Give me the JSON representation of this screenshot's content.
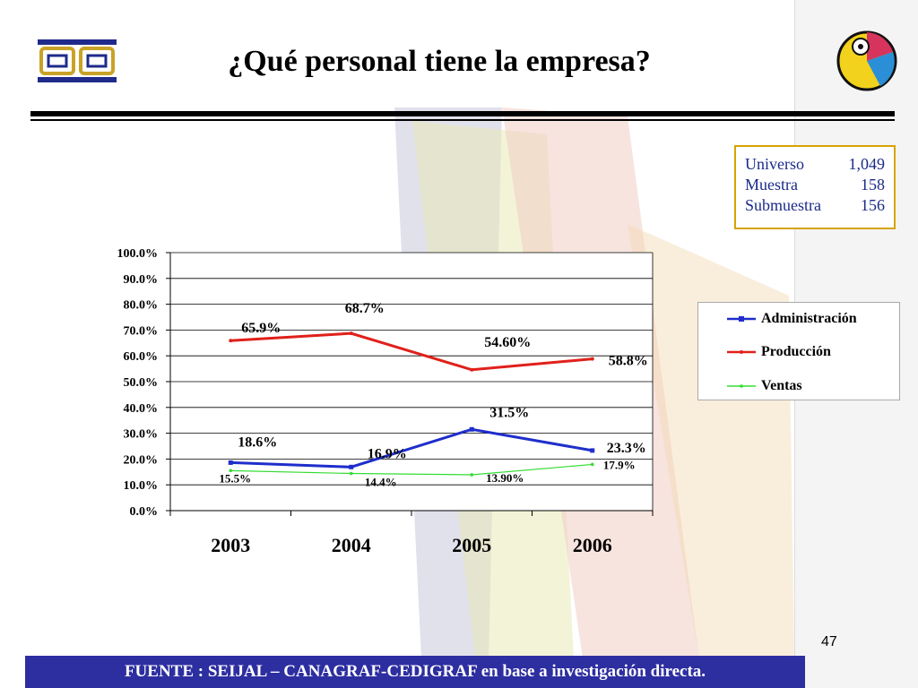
{
  "slide": {
    "title": "¿Qué personal tiene la empresa?",
    "page_number": "47",
    "source_note": "FUENTE :  SEIJAL – CANAGRAF-CEDIGRAF en base a investigación directa."
  },
  "sample_info": [
    {
      "label": "Universo",
      "value": "1,049"
    },
    {
      "label": "Muestra",
      "value": "158"
    },
    {
      "label": "Submuestra",
      "value": "156"
    }
  ],
  "colors": {
    "administracion": "#1f2ecb",
    "produccion": "#e0201a",
    "ventas": "#33dd33",
    "footer": "#2d2ea0",
    "box_border": "#d6a400"
  },
  "chart_data": {
    "type": "line",
    "title": "",
    "xlabel": "",
    "ylabel": "",
    "categories": [
      "2003",
      "2004",
      "2005",
      "2006"
    ],
    "ylim": [
      0,
      100
    ],
    "y_ticks": [
      "0.0%",
      "10.0%",
      "20.0%",
      "30.0%",
      "40.0%",
      "50.0%",
      "60.0%",
      "70.0%",
      "80.0%",
      "90.0%",
      "100.0%"
    ],
    "grid": true,
    "legend_position": "right",
    "series": [
      {
        "name": "Administración",
        "key": "administracion",
        "values": [
          18.6,
          16.9,
          31.5,
          23.3
        ],
        "labels": [
          "18.6%",
          "16.9%",
          "31.5%",
          "23.3%"
        ]
      },
      {
        "name": "Producción",
        "key": "produccion",
        "values": [
          65.9,
          68.7,
          54.6,
          58.8
        ],
        "labels": [
          "65.9%",
          "68.7%",
          "54.60%",
          "58.8%"
        ]
      },
      {
        "name": "Ventas",
        "key": "ventas",
        "values": [
          15.5,
          14.4,
          13.9,
          17.9
        ],
        "labels": [
          "15.5%",
          "14.4%",
          "13.90%",
          "17.9%"
        ]
      }
    ]
  }
}
